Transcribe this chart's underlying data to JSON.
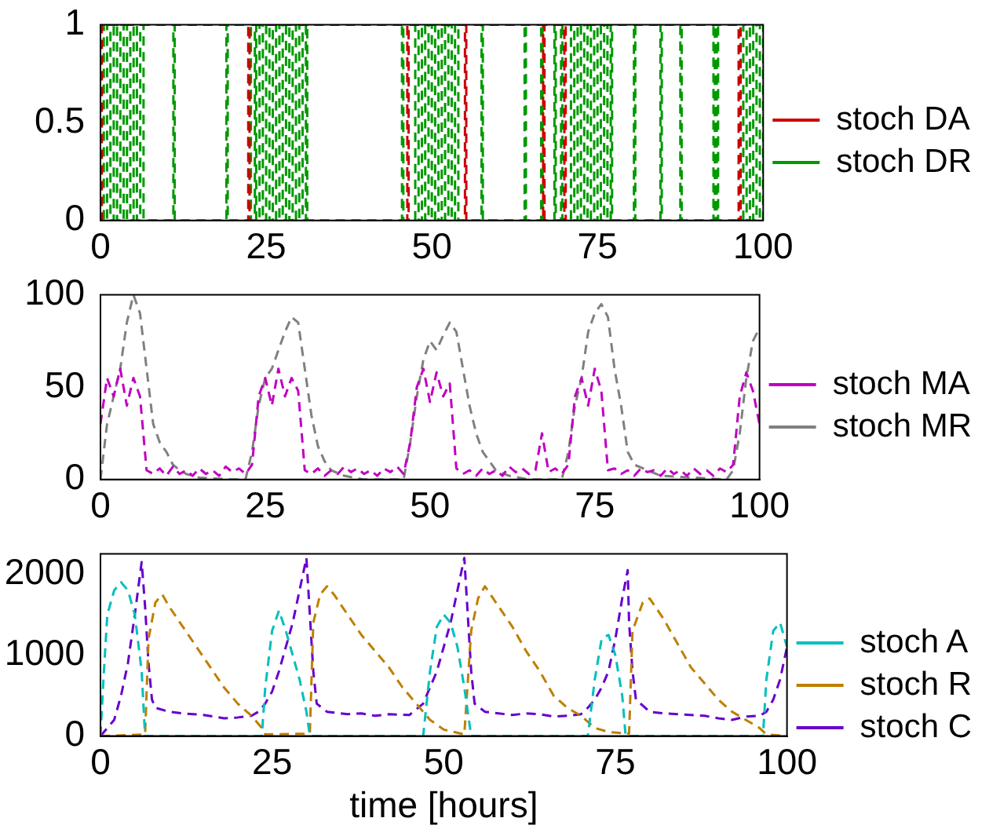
{
  "chart_data": [
    {
      "type": "step",
      "xlim": [
        0,
        100
      ],
      "xticks": [
        0,
        25,
        50,
        75,
        100
      ],
      "ylim": [
        0,
        1
      ],
      "yticks": [
        0,
        0.5,
        1
      ],
      "grid": false,
      "legend": "right",
      "marker": "none",
      "line_style": "dashed",
      "series": [
        {
          "name": "stoch DA",
          "color": "#cc0000",
          "x": [
            0,
            0.2,
            22.3,
            22.5,
            46.3,
            46.5,
            55,
            55.2,
            66.8,
            67,
            70,
            70.2,
            96.3,
            96.6
          ],
          "values": [
            0,
            1,
            0,
            1,
            0,
            1,
            0,
            1,
            0,
            1,
            0,
            1,
            0,
            1
          ]
        },
        {
          "name": "stoch DR",
          "color": "#009900",
          "x": [
            0,
            0.5,
            1,
            1.5,
            2,
            2.5,
            3,
            3.5,
            4,
            4.5,
            5,
            5.5,
            6,
            6.5,
            7,
            11,
            11.2,
            19,
            19.2,
            22.5,
            22.7,
            23.3,
            23.5,
            24,
            24.5,
            25,
            25.5,
            26,
            26.5,
            27,
            27.5,
            28,
            28.5,
            29,
            29.5,
            30,
            30.5,
            31,
            31.2,
            45.5,
            45.7,
            47.5,
            48,
            48.5,
            49,
            49.5,
            50,
            50.5,
            51,
            51.5,
            52,
            52.5,
            53,
            53.5,
            54,
            57.5,
            57.7,
            64,
            64.2,
            66.5,
            66.7,
            68.5,
            68.7,
            69.5,
            69.7,
            71,
            71.5,
            72,
            72.5,
            73,
            73.5,
            74,
            74.5,
            75,
            75.5,
            76,
            76.5,
            77,
            77.2,
            80.5,
            80.7,
            84.5,
            84.7,
            87.5,
            87.7,
            92.5,
            92.7,
            93,
            93.2,
            97,
            97.5,
            98,
            98.5,
            99,
            99.5,
            100
          ],
          "values": [
            1,
            0,
            1,
            0,
            1,
            0,
            1,
            0,
            1,
            0,
            1,
            0,
            1,
            0,
            0,
            1,
            0,
            1,
            0,
            1,
            0,
            1,
            0,
            1,
            0,
            1,
            0,
            1,
            0,
            1,
            0,
            1,
            0,
            1,
            0,
            1,
            0,
            1,
            0,
            1,
            0,
            1,
            0,
            1,
            0,
            1,
            0,
            1,
            0,
            1,
            0,
            1,
            0,
            1,
            0,
            1,
            0,
            1,
            0,
            1,
            0,
            1,
            0,
            1,
            0,
            1,
            0,
            1,
            0,
            1,
            0,
            1,
            0,
            1,
            0,
            1,
            0,
            1,
            0,
            1,
            0,
            1,
            0,
            1,
            0,
            1,
            0,
            1,
            0,
            1,
            0,
            1,
            0,
            1,
            0,
            1
          ]
        }
      ]
    },
    {
      "type": "line",
      "xlim": [
        0,
        100
      ],
      "xticks": [
        0,
        25,
        50,
        75,
        100
      ],
      "ylim": [
        0,
        100
      ],
      "yticks": [
        0,
        50,
        100
      ],
      "grid": false,
      "legend": "right",
      "marker": "none",
      "line_style": "dashed",
      "series": [
        {
          "name": "stoch MA",
          "color": "#bf00bf",
          "x": [
            0,
            1,
            2,
            3,
            4,
            5,
            6,
            7,
            8,
            9,
            10,
            11,
            12,
            13,
            14,
            15,
            16,
            17,
            18,
            19,
            20,
            21,
            22,
            23,
            24,
            25,
            26,
            27,
            28,
            29,
            30,
            31,
            32,
            33,
            34,
            35,
            36,
            37,
            38,
            39,
            40,
            41,
            42,
            43,
            44,
            45,
            46,
            47,
            48,
            49,
            50,
            51,
            52,
            53,
            54,
            55,
            56,
            57,
            58,
            59,
            60,
            61,
            62,
            63,
            64,
            65,
            66,
            67,
            68,
            69,
            70,
            71,
            72,
            73,
            74,
            75,
            76,
            77,
            78,
            79,
            80,
            81,
            82,
            83,
            84,
            85,
            86,
            87,
            88,
            89,
            90,
            91,
            92,
            93,
            94,
            95,
            96,
            97,
            98,
            99,
            100
          ],
          "values": [
            30,
            55,
            45,
            60,
            40,
            55,
            45,
            5,
            3,
            6,
            2,
            7,
            3,
            5,
            2,
            6,
            3,
            5,
            2,
            7,
            4,
            6,
            3,
            8,
            45,
            55,
            40,
            60,
            45,
            55,
            48,
            5,
            3,
            6,
            2,
            5,
            3,
            7,
            4,
            6,
            3,
            5,
            2,
            6,
            4,
            7,
            3,
            20,
            50,
            60,
            42,
            58,
            45,
            52,
            6,
            3,
            5,
            2,
            6,
            3,
            5,
            2,
            7,
            4,
            6,
            3,
            5,
            25,
            4,
            6,
            3,
            8,
            45,
            55,
            40,
            60,
            48,
            5,
            6,
            3,
            5,
            2,
            6,
            4,
            5,
            2,
            6,
            3,
            5,
            2,
            6,
            3,
            5,
            2,
            6,
            4,
            8,
            45,
            58,
            48,
            30
          ]
        },
        {
          "name": "stoch MR",
          "color": "#808080",
          "x": [
            0,
            1,
            2,
            3,
            4,
            5,
            6,
            7,
            8,
            9,
            10,
            11,
            12,
            13,
            15,
            20,
            22,
            23,
            24,
            25,
            26,
            27,
            28,
            29,
            30,
            31,
            32,
            33,
            34,
            35,
            37,
            40,
            46,
            47,
            48,
            49,
            50,
            51,
            52,
            53,
            54,
            55,
            56,
            57,
            58,
            59,
            60,
            62,
            65,
            70,
            71,
            72,
            73,
            74,
            75,
            76,
            77,
            78,
            79,
            80,
            81,
            83,
            85,
            90,
            95,
            96,
            97,
            98,
            99,
            100
          ],
          "values": [
            0,
            30,
            45,
            60,
            85,
            100,
            90,
            60,
            30,
            20,
            15,
            8,
            5,
            3,
            1,
            0,
            0,
            15,
            40,
            55,
            60,
            70,
            80,
            88,
            85,
            60,
            35,
            18,
            10,
            5,
            2,
            0,
            0,
            20,
            45,
            65,
            75,
            70,
            78,
            85,
            80,
            60,
            40,
            25,
            15,
            10,
            5,
            2,
            0,
            0,
            15,
            40,
            55,
            80,
            90,
            95,
            88,
            60,
            40,
            15,
            8,
            5,
            2,
            1,
            0,
            5,
            25,
            55,
            75,
            82
          ]
        }
      ]
    },
    {
      "type": "line",
      "xlim": [
        0,
        100
      ],
      "xticks": [
        0,
        25,
        50,
        75,
        100
      ],
      "ylim": [
        0,
        2250
      ],
      "yticks": [
        0,
        1000,
        2000
      ],
      "xlabel": "time [hours]",
      "grid": false,
      "legend": "right",
      "marker": "none",
      "line_style": "dashed",
      "series": [
        {
          "name": "stoch A",
          "color": "#00bfbf",
          "x": [
            0,
            0.5,
            1,
            2,
            3,
            4,
            5,
            6,
            6.5,
            23.5,
            24,
            25,
            26,
            27,
            28,
            29,
            30,
            30.5,
            47,
            48,
            49,
            50,
            51,
            52,
            53,
            54,
            71,
            72,
            73,
            74,
            75,
            76,
            76.5,
            96.5,
            97,
            98,
            99,
            100
          ],
          "values": [
            0,
            800,
            1500,
            1800,
            1900,
            1800,
            1500,
            800,
            0,
            0,
            600,
            1300,
            1550,
            1300,
            1000,
            700,
            300,
            0,
            0,
            800,
            1350,
            1500,
            1400,
            1100,
            600,
            0,
            0,
            700,
            1200,
            1250,
            1000,
            500,
            0,
            0,
            700,
            1300,
            1400,
            1100
          ]
        },
        {
          "name": "stoch R",
          "color": "#bf7f00",
          "x": [
            0,
            6.5,
            7,
            8,
            9,
            10,
            12,
            14,
            16,
            18,
            20,
            22,
            23.5,
            24,
            30.5,
            31,
            32,
            33,
            34,
            36,
            38,
            40,
            42,
            44,
            46,
            48,
            50,
            53,
            54,
            55,
            56,
            58,
            60,
            62,
            64,
            66,
            68,
            70,
            72,
            74,
            77,
            77.5,
            79,
            80,
            82,
            84,
            86,
            88,
            90,
            92,
            94,
            96,
            97,
            100
          ],
          "values": [
            0,
            20,
            1200,
            1650,
            1750,
            1600,
            1350,
            1100,
            850,
            600,
            400,
            250,
            100,
            20,
            30,
            1400,
            1750,
            1850,
            1750,
            1500,
            1250,
            1050,
            850,
            600,
            400,
            200,
            80,
            20,
            1300,
            1700,
            1850,
            1600,
            1350,
            1050,
            800,
            500,
            350,
            250,
            100,
            50,
            30,
            1300,
            1650,
            1700,
            1450,
            1150,
            850,
            650,
            450,
            300,
            200,
            100,
            20,
            0
          ]
        },
        {
          "name": "stoch C",
          "color": "#6600cc",
          "x": [
            0,
            2,
            3,
            4,
            5,
            6,
            6.5,
            7,
            7.5,
            8,
            10,
            12,
            15,
            18,
            20,
            22,
            23,
            24,
            25,
            26,
            27,
            28,
            29,
            30,
            30.5,
            31,
            31.5,
            33,
            36,
            38,
            40,
            42,
            45,
            47,
            48,
            49,
            50,
            51,
            52,
            53,
            53.5,
            54,
            54.5,
            56,
            58,
            60,
            62,
            64,
            66,
            68,
            70,
            71,
            72,
            73,
            74,
            75,
            76,
            76.8,
            77,
            77.5,
            78,
            80,
            82,
            84,
            86,
            88,
            90,
            92,
            94,
            96,
            97,
            98,
            99,
            100
          ],
          "values": [
            0,
            200,
            500,
            900,
            1500,
            2150,
            1600,
            900,
            450,
            350,
            300,
            280,
            260,
            220,
            230,
            250,
            300,
            400,
            550,
            800,
            1100,
            1400,
            1800,
            2200,
            1500,
            800,
            400,
            300,
            270,
            280,
            250,
            270,
            260,
            400,
            600,
            800,
            1100,
            1400,
            1800,
            2200,
            1500,
            800,
            400,
            300,
            280,
            260,
            280,
            270,
            240,
            250,
            270,
            350,
            450,
            600,
            800,
            1200,
            1700,
            2050,
            1400,
            800,
            450,
            300,
            280,
            270,
            260,
            250,
            220,
            200,
            240,
            250,
            300,
            450,
            700,
            1100
          ]
        }
      ]
    }
  ]
}
